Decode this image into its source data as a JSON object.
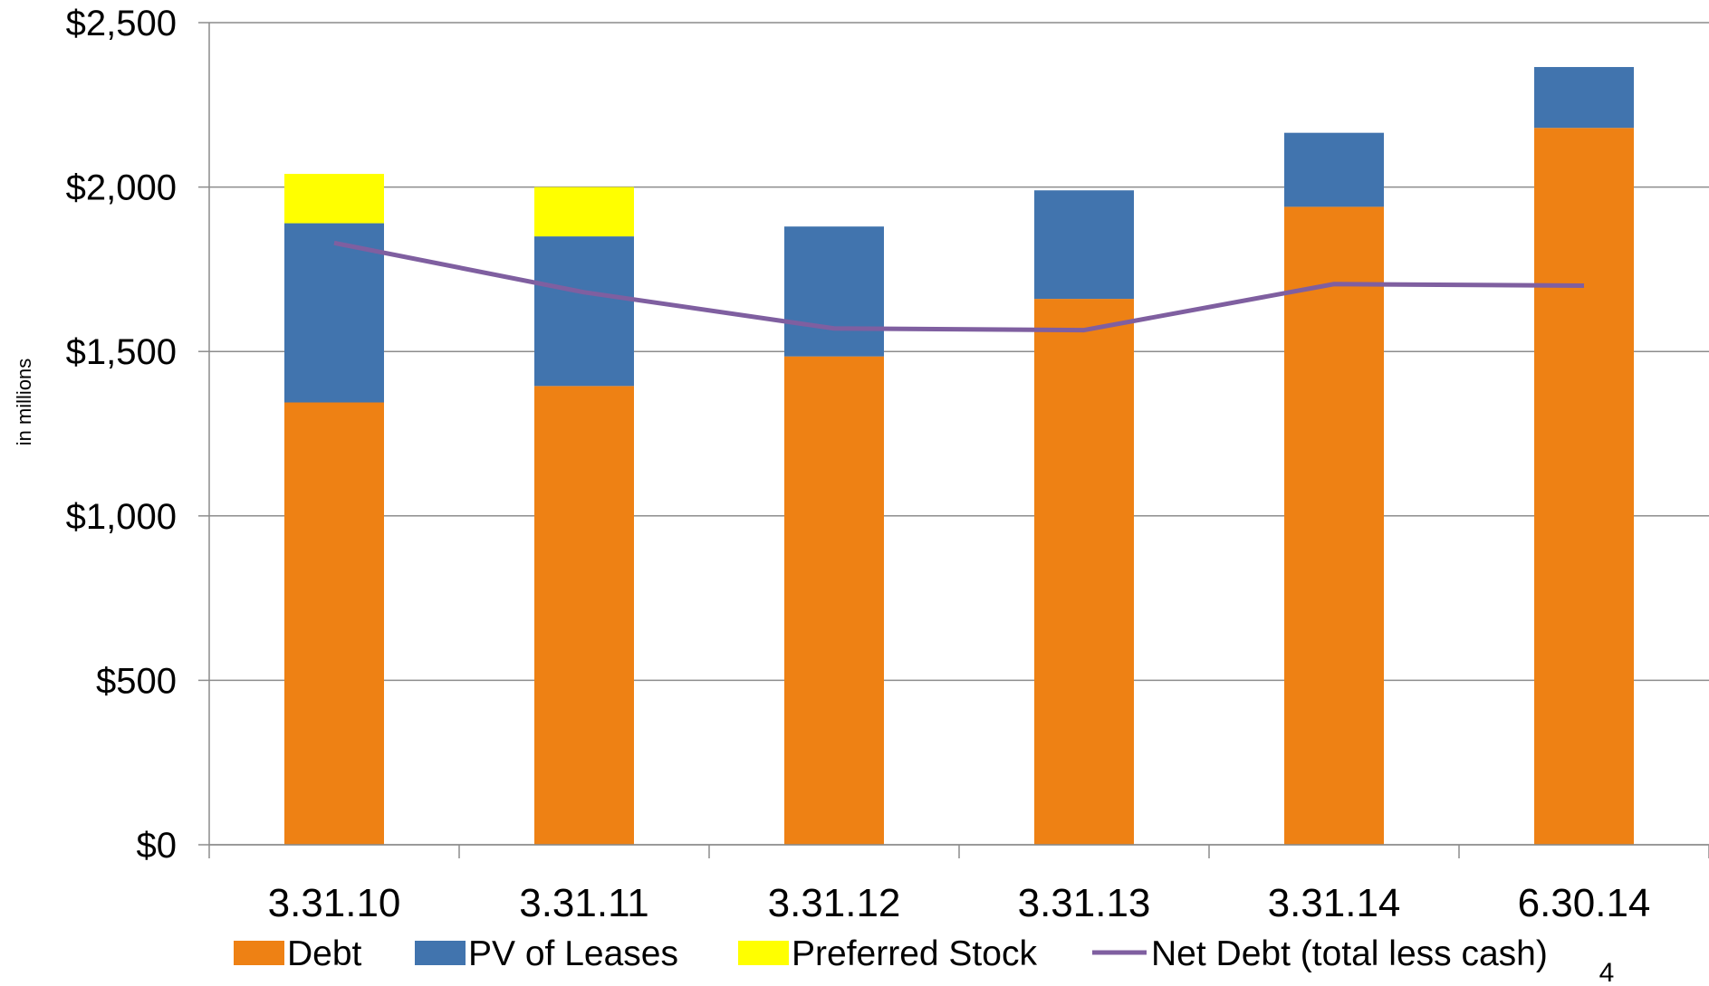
{
  "chart_data": {
    "type": "bar",
    "stacked": true,
    "ylabel": "in millions",
    "ylim": [
      0,
      2500
    ],
    "yticks": [
      0,
      500,
      1000,
      1500,
      2000,
      2500
    ],
    "ytick_labels": [
      "$0",
      "$500",
      "$1,000",
      "$1,500",
      "$2,000",
      "$2,500"
    ],
    "grid": true,
    "legend_position": "bottom",
    "categories": [
      "3.31.10",
      "3.31.11",
      "3.31.12",
      "3.31.13",
      "3.31.14",
      "6.30.14"
    ],
    "series": [
      {
        "name": "Debt",
        "kind": "bar",
        "color": "#EE8114",
        "values": [
          1345,
          1395,
          1485,
          1660,
          1940,
          2180
        ]
      },
      {
        "name": "PV of Leases",
        "kind": "bar",
        "color": "#4174AE",
        "values": [
          545,
          455,
          395,
          330,
          225,
          185
        ]
      },
      {
        "name": "Preferred Stock",
        "kind": "bar",
        "color": "#FFFF00",
        "values": [
          150,
          150,
          0,
          0,
          0,
          0
        ]
      },
      {
        "name": "Net Debt (total less cash)",
        "kind": "line",
        "color": "#7F5FA0",
        "values": [
          1830,
          1680,
          1570,
          1565,
          1705,
          1700
        ]
      }
    ]
  },
  "page_number": "4"
}
